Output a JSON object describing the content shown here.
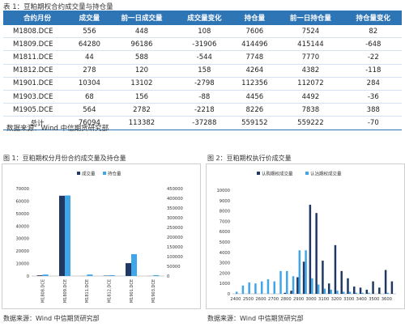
{
  "table": {
    "caption": "表 1：豆粕期权合约成交量与持仓量",
    "headers": [
      "合约月份",
      "成交量",
      "前一日成交量",
      "成交量变化",
      "持仓量",
      "前一日持仓量",
      "持仓量变化"
    ],
    "rows": [
      [
        "M1808.DCE",
        "556",
        "448",
        "108",
        "7606",
        "7524",
        "82"
      ],
      [
        "M1809.DCE",
        "64280",
        "96186",
        "-31906",
        "414496",
        "415144",
        "-648"
      ],
      [
        "M1811.DCE",
        "44",
        "588",
        "-544",
        "7748",
        "7770",
        "-22"
      ],
      [
        "M1812.DCE",
        "278",
        "120",
        "158",
        "4264",
        "4382",
        "-118"
      ],
      [
        "M1901.DCE",
        "10304",
        "13102",
        "-2798",
        "112356",
        "112072",
        "284"
      ],
      [
        "M1903.DCE",
        "68",
        "156",
        "-88",
        "4456",
        "4492",
        "-36"
      ],
      [
        "M1905.DCE",
        "564",
        "2782",
        "-2218",
        "8226",
        "7838",
        "388"
      ]
    ],
    "total": [
      "总计",
      "76094",
      "113382",
      "-37288",
      "559152",
      "559222",
      "-70"
    ],
    "source": "数据来源：Wind  中信期货研究部"
  },
  "fig1": {
    "title": "图 1：豆粕期权分月份合约成交量及持仓量",
    "source": "数据来源：Wind  中信期货研究部"
  },
  "fig2": {
    "title": "图 2：豆粕期权执行价成交量",
    "source": "数据来源：Wind  中信期货研究部"
  },
  "colors": {
    "navy": "#1f3864",
    "sky": "#41a6e8",
    "header": "#2e75b6"
  },
  "chart_data": [
    {
      "type": "bar",
      "title": "图 1：豆粕期权分月份合约成交量及持仓量",
      "categories": [
        "M1808.DCE",
        "M1809.DCE",
        "M1811.DCE",
        "M1812.DCE",
        "M1901.DCE",
        "M1903.DCE"
      ],
      "series": [
        {
          "name": "成交量",
          "axis": "left",
          "color": "#1f3864",
          "values": [
            556,
            64280,
            44,
            278,
            10304,
            68
          ]
        },
        {
          "name": "持仓量",
          "axis": "right",
          "color": "#41a6e8",
          "values": [
            7606,
            414496,
            7748,
            4264,
            112356,
            4456
          ]
        }
      ],
      "ylim": [
        0,
        70000
      ],
      "yticks": [
        0,
        10000,
        20000,
        30000,
        40000,
        50000,
        60000,
        70000
      ],
      "y2lim": [
        0,
        450000
      ],
      "y2ticks": [
        0,
        50000,
        100000,
        150000,
        200000,
        250000,
        300000,
        350000,
        400000,
        450000
      ],
      "legend": "top"
    },
    {
      "type": "bar",
      "title": "图 2：豆粕期权执行价成交量",
      "x": [
        2400,
        2450,
        2500,
        2550,
        2600,
        2650,
        2700,
        2750,
        2800,
        2850,
        2900,
        2950,
        3000,
        3050,
        3100,
        3150,
        3200,
        3250,
        3300,
        3350,
        3400,
        3450,
        3500,
        3550,
        3600,
        3650
      ],
      "xticks": [
        2400,
        2500,
        2600,
        2700,
        2800,
        2900,
        3000,
        3100,
        3200,
        3300,
        3400,
        3500,
        3600
      ],
      "series": [
        {
          "name": "认购期权成交量",
          "color": "#1f3864",
          "values": [
            0,
            0,
            0,
            0,
            0,
            0,
            0,
            0,
            100,
            300,
            1600,
            3100,
            8600,
            7800,
            3200,
            1000,
            4700,
            2200,
            1500,
            700,
            600,
            400,
            1200,
            600,
            2300,
            1200
          ]
        },
        {
          "name": "认沽期权成交量",
          "color": "#41a6e8",
          "values": [
            200,
            800,
            1100,
            1000,
            1200,
            1400,
            1200,
            2200,
            2200,
            1700,
            4200,
            4200,
            1500,
            900,
            500,
            400,
            300,
            200,
            200,
            100,
            100,
            100,
            0,
            0,
            100,
            0
          ]
        }
      ],
      "ylim": [
        0,
        10000
      ],
      "yticks": [
        0,
        1000,
        2000,
        3000,
        4000,
        5000,
        6000,
        7000,
        8000,
        9000,
        10000
      ],
      "legend": "top"
    }
  ]
}
